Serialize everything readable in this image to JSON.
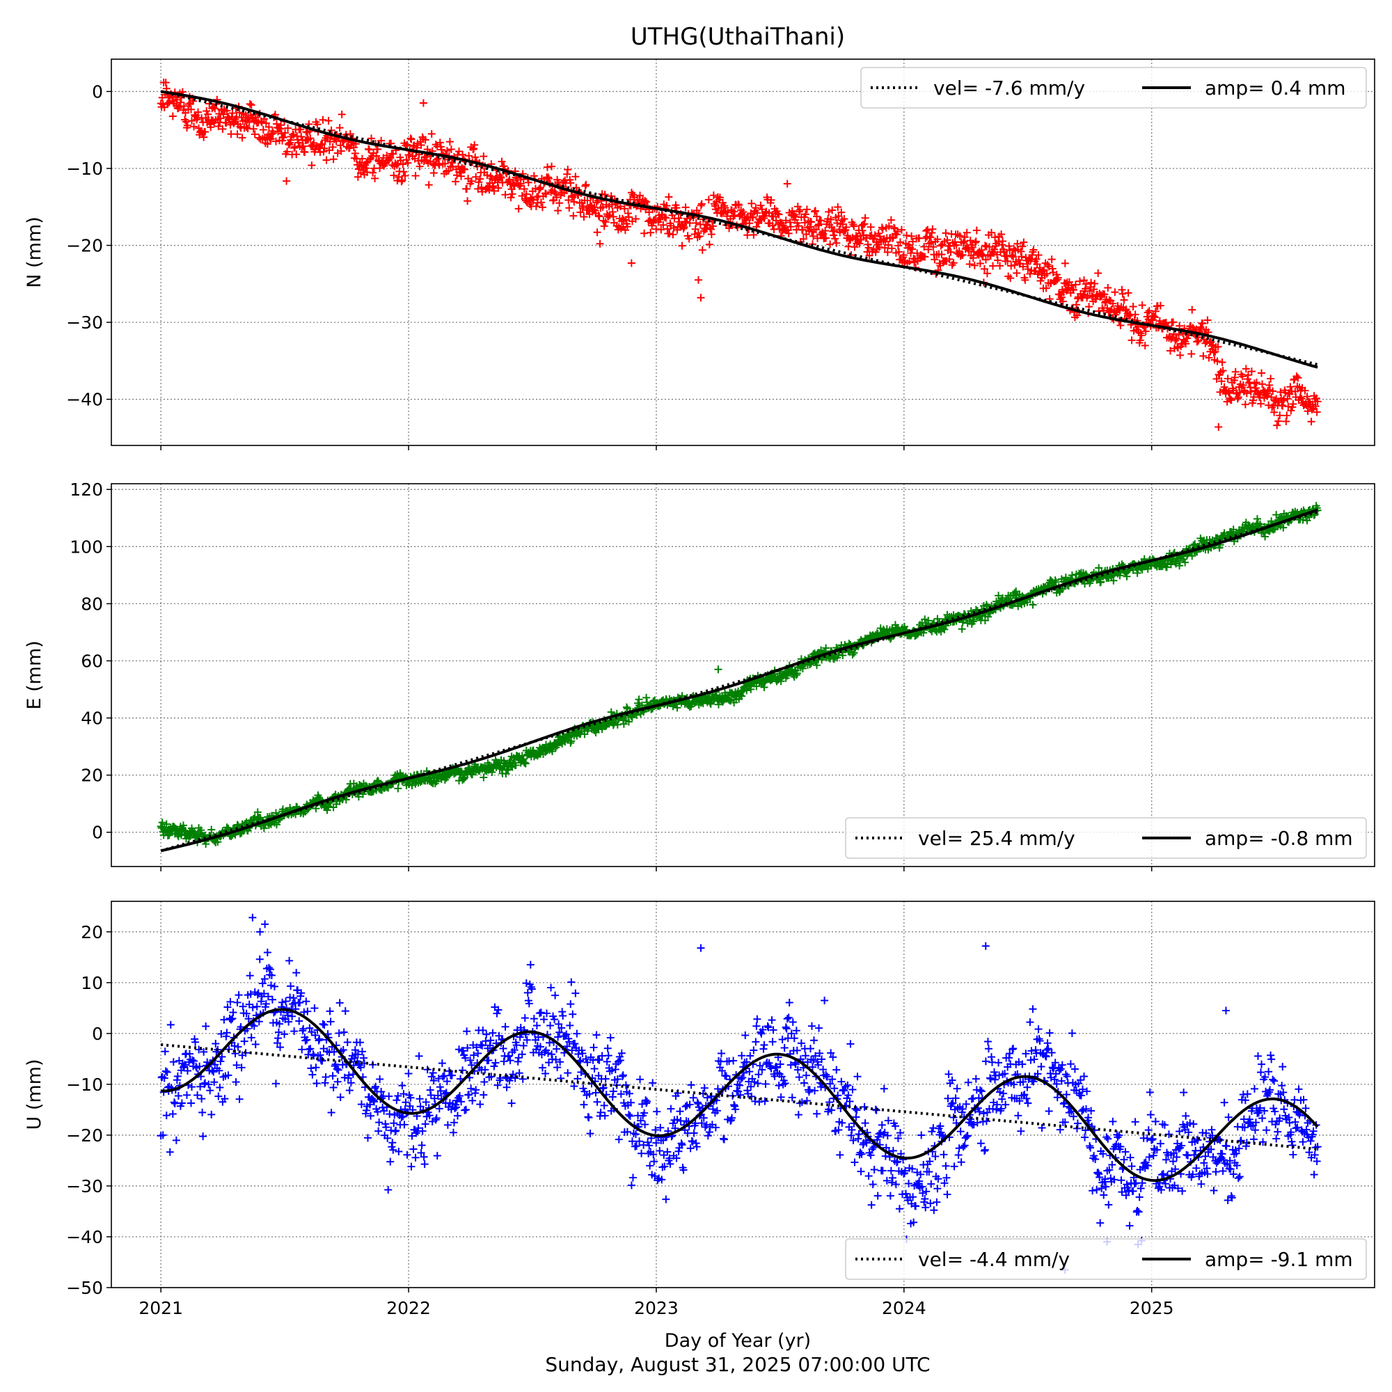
{
  "title": "UTHG(UthaiThani)",
  "xlabel": "Day of Year (yr)",
  "footer": "Sunday, August 31, 2025 07:00:00 UTC",
  "colors": {
    "north": "#ff0000",
    "east": "#008000",
    "up": "#0000ff",
    "model": "#000000",
    "grid": "#7f7f7f"
  },
  "chart_data": [
    {
      "type": "scatter",
      "component": "N",
      "ylabel": "N (mm)",
      "xlim": [
        2020.8,
        2025.9
      ],
      "ylim": [
        -46,
        4.2
      ],
      "x_ticks": [
        "2021",
        "2022",
        "2023",
        "2024",
        "2025"
      ],
      "y_ticks": [
        0,
        -10,
        -20,
        -30,
        -40
      ],
      "y_tick_labels": [
        "0",
        "−10",
        "−20",
        "−30",
        "−40"
      ],
      "color": "#ff0000",
      "legend": {
        "position": "upper-right",
        "vel_label": "vel= -7.6 mm/y",
        "amp_label": "amp= 0.4 mm"
      },
      "model": {
        "t0": 2021.0,
        "offset": 0.0,
        "vel": -7.6,
        "amp": 0.4,
        "phase_shift": 0.25
      },
      "observed_trend": [
        [
          2021.0,
          -1.5
        ],
        [
          2021.3,
          -3.5
        ],
        [
          2021.8,
          -8.0
        ],
        [
          2022.0,
          -8.5
        ],
        [
          2022.3,
          -10.5
        ],
        [
          2022.6,
          -13.0
        ],
        [
          2023.0,
          -17.0
        ],
        [
          2023.3,
          -16.5
        ],
        [
          2023.6,
          -16.5
        ],
        [
          2024.0,
          -20.0
        ],
        [
          2024.3,
          -19.5
        ],
        [
          2024.6,
          -23.5
        ],
        [
          2024.9,
          -29.5
        ],
        [
          2025.2,
          -32.0
        ],
        [
          2025.35,
          -39.0
        ],
        [
          2025.67,
          -40.0
        ]
      ],
      "outliers": [
        [
          2022.06,
          -1.5
        ],
        [
          2022.9,
          -22.3
        ],
        [
          2023.17,
          -24.5
        ],
        [
          2023.18,
          -26.8
        ],
        [
          2025.27,
          -43.6
        ]
      ],
      "n_points": 1650,
      "noise": 1.6
    },
    {
      "type": "scatter",
      "component": "E",
      "ylabel": "E (mm)",
      "xlim": [
        2020.8,
        2025.9
      ],
      "ylim": [
        -12,
        122
      ],
      "x_ticks": [
        "2021",
        "2022",
        "2023",
        "2024",
        "2025"
      ],
      "y_ticks": [
        0,
        20,
        40,
        60,
        80,
        100,
        120
      ],
      "y_tick_labels": [
        "0",
        "20",
        "40",
        "60",
        "80",
        "100",
        "120"
      ],
      "color": "#008000",
      "legend": {
        "position": "lower-right",
        "vel_label": "vel= 25.4 mm/y",
        "amp_label": "amp= -0.8 mm"
      },
      "model": {
        "t0": 2021.0,
        "offset": -6.5,
        "vel": 25.4,
        "amp": -0.8,
        "phase_shift": 0.25
      },
      "observed_trend": [
        [
          2021.0,
          1.0
        ],
        [
          2021.2,
          -2.0
        ],
        [
          2021.5,
          6.0
        ],
        [
          2021.8,
          15.0
        ],
        [
          2022.0,
          19.0
        ],
        [
          2022.3,
          21.0
        ],
        [
          2022.5,
          28.0
        ],
        [
          2022.8,
          39.0
        ],
        [
          2023.0,
          44.0
        ],
        [
          2023.3,
          48.0
        ],
        [
          2023.5,
          55.0
        ],
        [
          2023.8,
          66.0
        ],
        [
          2024.0,
          70.0
        ],
        [
          2024.3,
          76.0
        ],
        [
          2024.6,
          86.0
        ],
        [
          2025.0,
          94.0
        ],
        [
          2025.3,
          103.0
        ],
        [
          2025.67,
          113.0
        ]
      ],
      "outliers": [
        [
          2022.93,
          46.5
        ],
        [
          2023.25,
          57.0
        ]
      ],
      "n_points": 1650,
      "noise": 1.4
    },
    {
      "type": "scatter",
      "component": "U",
      "ylabel": "U (mm)",
      "xlim": [
        2020.8,
        2025.9
      ],
      "ylim": [
        -50,
        26
      ],
      "x_ticks": [
        "2021",
        "2022",
        "2023",
        "2024",
        "2025"
      ],
      "y_ticks": [
        20,
        10,
        0,
        -10,
        -20,
        -30,
        -40,
        -50
      ],
      "y_tick_labels": [
        "20",
        "10",
        "0",
        "−10",
        "−20",
        "−30",
        "−40",
        "−50"
      ],
      "color": "#0000ff",
      "legend": {
        "position": "lower-right",
        "vel_label": "vel= -4.4 mm/y",
        "amp_label": "amp= -9.1 mm"
      },
      "model": {
        "t0": 2021.0,
        "offset": -2.2,
        "vel": -4.4,
        "amp": -9.1,
        "phase_shift": 0.0
      },
      "observed_trend": null,
      "outliers": [
        [
          2021.37,
          22.8
        ],
        [
          2021.4,
          20.0
        ],
        [
          2021.42,
          21.5
        ],
        [
          2023.18,
          16.8
        ],
        [
          2024.33,
          17.2
        ],
        [
          2024.65,
          -46.5
        ],
        [
          2024.82,
          -41.0
        ],
        [
          2025.3,
          4.5
        ]
      ],
      "n_points": 1650,
      "noise": 5.5
    }
  ]
}
